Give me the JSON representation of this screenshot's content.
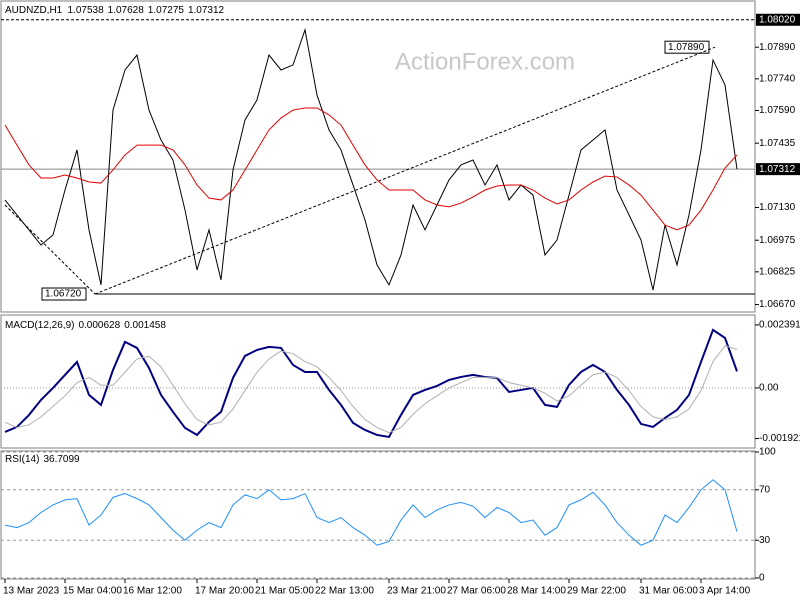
{
  "chart_data": [
    {
      "type": "line",
      "title": "AUDNZD,H1",
      "ohlc": [
        1.07538,
        1.07628,
        1.07275,
        1.07312
      ],
      "watermark": "ActionForex.com",
      "categories": [
        "13 Mar 2023",
        null,
        null,
        null,
        null,
        "15 Mar 04:00",
        null,
        null,
        null,
        null,
        "16 Mar 12:00",
        null,
        null,
        null,
        null,
        null,
        "17 Mar 20:00",
        null,
        null,
        null,
        null,
        "21 Mar 05:00",
        null,
        null,
        null,
        null,
        "22 Mar 13:00",
        null,
        null,
        null,
        null,
        null,
        "23 Mar 21:00",
        null,
        null,
        null,
        null,
        "27 Mar 06:00",
        null,
        null,
        null,
        null,
        "28 Mar 14:00",
        null,
        null,
        null,
        null,
        "29 Mar 22:00",
        null,
        null,
        null,
        null,
        null,
        "31 Mar 06:00",
        null,
        null,
        null,
        null,
        "3 Apr 14:00",
        null,
        null,
        null
      ],
      "ylim": [
        1.0663,
        1.0809
      ],
      "yticks": [
        {
          "value": 1.0789,
          "label": "1.07890"
        },
        {
          "value": 1.0774,
          "label": "1.07740"
        },
        {
          "value": 1.0759,
          "label": "1.07590"
        },
        1.07435,
        {
          "value": 1.0713,
          "label": "1.07130"
        },
        1.06975,
        1.06825,
        {
          "value": 1.0667,
          "label": "1.06670"
        }
      ],
      "hlines": [
        {
          "value": 1.0802,
          "label": "1.08020",
          "style": "dashed"
        },
        {
          "value": 1.07312,
          "label": "1.07312",
          "style": "solid"
        }
      ],
      "annotations": [
        {
          "value": 1.0789,
          "label": "1.07890"
        },
        {
          "value": 1.0672,
          "label": "1.06720"
        }
      ],
      "grid": false,
      "series": [
        {
          "color": "#000000",
          "line_width": 1,
          "values": [
            1.07166,
            1.07095,
            1.07024,
            1.06952,
            1.07,
            1.07213,
            1.07403,
            1.07024,
            1.06763,
            1.07592,
            1.07782,
            1.07853,
            1.07592,
            1.0745,
            1.07355,
            1.07118,
            1.06834,
            1.07024,
            1.06787,
            1.07308,
            1.07545,
            1.0764,
            1.07853,
            1.07782,
            1.07806,
            1.07972,
            1.07663,
            1.07498,
            1.07403,
            1.07237,
            1.07071,
            1.06858,
            1.06763,
            1.06905,
            1.07142,
            1.07024,
            1.07142,
            1.07261,
            1.07332,
            1.07355,
            1.07237,
            1.07332,
            1.07166,
            1.07237,
            1.07189,
            1.06905,
            1.06976,
            1.07189,
            1.07403,
            1.0745,
            1.07498,
            1.07213,
            1.07095,
            1.06976,
            1.06739,
            1.07047,
            1.06858,
            1.07095,
            1.07403,
            1.07829,
            1.07711,
            1.07312
          ]
        },
        {
          "color": "#e00000",
          "line_width": 1,
          "values": [
            1.07521,
            1.07426,
            1.07332,
            1.0727,
            1.0727,
            1.07284,
            1.0727,
            1.07251,
            1.07246,
            1.07308,
            1.07379,
            1.07426,
            1.07426,
            1.07426,
            1.07403,
            1.07332,
            1.07237,
            1.07175,
            1.07166,
            1.07213,
            1.07308,
            1.07403,
            1.07498,
            1.07554,
            1.07592,
            1.07602,
            1.07602,
            1.07569,
            1.07521,
            1.07426,
            1.07332,
            1.07261,
            1.07213,
            1.07213,
            1.07213,
            1.07166,
            1.07142,
            1.07133,
            1.07151,
            1.0718,
            1.07213,
            1.07232,
            1.07237,
            1.07237,
            1.07213,
            1.07175,
            1.07147,
            1.07166,
            1.07213,
            1.07251,
            1.07279,
            1.07275,
            1.07237,
            1.07189,
            1.07118,
            1.07047,
            1.07024,
            1.07047,
            1.07118,
            1.07213,
            1.07317,
            1.07379
          ]
        }
      ]
    },
    {
      "type": "line",
      "title": "MACD(12,26,9)",
      "last_values": [
        0.000628,
        0.001458
      ],
      "ylim": [
        -0.00228,
        0.00273
      ],
      "yticks": [
        0.002391,
        {
          "value": 0,
          "label": "0.00"
        },
        -0.001921
      ],
      "grid": false,
      "zero_line": true,
      "series": [
        {
          "color": "#000080",
          "line_width": 2,
          "values": [
            -0.00167,
            -0.00148,
            -0.001025,
            -0.000455,
            0,
            0.000493,
            0.000987,
            -0.000266,
            -0.000645,
            0.000683,
            0.001746,
            0.001518,
            0.000759,
            -0.000266,
            -0.000911,
            -0.001518,
            -0.001784,
            -0.00129,
            -0.000911,
            0.00038,
            0.001214,
            0.001442,
            0.001556,
            0.001518,
            0.000873,
            0.000607,
            0.000607,
            -7.6e-05,
            -0.000645,
            -0.001328,
            -0.001594,
            -0.001784,
            -0.00186,
            -0.001025,
            -0.000266,
            -7.6e-05,
            7.6e-05,
            0.000304,
            0.000417,
            0.000493,
            0.000417,
            0.00038,
            -0.000152,
            -7.6e-05,
            0,
            -0.000645,
            -0.000721,
            0.000114,
            0.000607,
            0.000873,
            0.000607,
            -7.6e-05,
            -0.000645,
            -0.001366,
            -0.00148,
            -0.001139,
            -0.000835,
            -0.000266,
            0.000987,
            0.002201,
            0.001898,
            0.000628
          ]
        },
        {
          "color": "#b0b0b0",
          "line_width": 1,
          "values": [
            -0.0013,
            -0.0015,
            -0.0014,
            -0.0011,
            -0.0007,
            -0.0003,
            0.0002,
            0.0004,
            0.0001,
            0.0001,
            0.0006,
            0.0011,
            0.0012,
            0.0008,
            0.0001,
            -0.0006,
            -0.0012,
            -0.0014,
            -0.0013,
            -0.0008,
            -0.0001,
            0.0006,
            0.0011,
            0.0014,
            0.0013,
            0.001,
            0.0008,
            0.0004,
            -0.0001,
            -0.0007,
            -0.0012,
            -0.0015,
            -0.0017,
            -0.0015,
            -0.001,
            -0.0006,
            -0.0003,
            0,
            0.0002,
            0.0004,
            0.0004,
            0.0004,
            0.0002,
            0.0001,
            0,
            -0.0002,
            -0.0005,
            -0.0003,
            0.0001,
            0.0005,
            0.0006,
            0.0004,
            -0.0001,
            -0.0007,
            -0.0011,
            -0.0012,
            -0.0011,
            -0.0008,
            -0.0001,
            0.001,
            0.0016,
            0.001458
          ]
        }
      ]
    },
    {
      "type": "line",
      "title": "RSI(14)",
      "last_values": [
        36.7099
      ],
      "ylim": [
        0,
        100
      ],
      "yticks": [
        100,
        70,
        30,
        0
      ],
      "grid": true,
      "series": [
        {
          "color": "#1e90ff",
          "line_width": 1,
          "values": [
            42,
            40,
            44,
            52,
            58,
            62,
            63,
            42,
            50,
            64,
            67,
            63,
            58,
            48,
            38,
            30,
            38,
            44,
            40,
            58,
            66,
            63,
            70,
            62,
            63,
            67,
            48,
            44,
            48,
            40,
            34,
            26,
            29,
            46,
            58,
            48,
            54,
            58,
            60,
            57,
            48,
            56,
            52,
            44,
            46,
            34,
            40,
            58,
            62,
            68,
            58,
            44,
            34,
            26,
            30,
            50,
            44,
            56,
            70,
            78,
            70,
            36.7099
          ]
        }
      ]
    }
  ]
}
